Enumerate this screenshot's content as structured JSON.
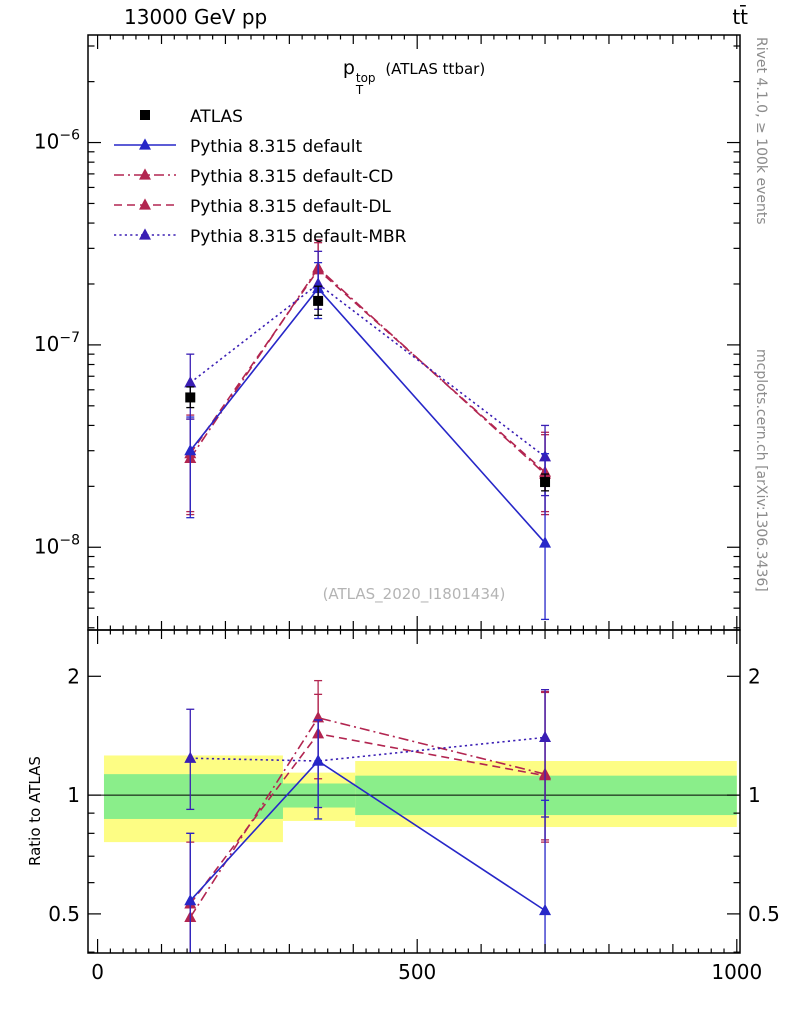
{
  "header": {
    "left": "13000 GeV pp",
    "right": "tt̄"
  },
  "title": {
    "base": "p",
    "sup": "top",
    "sub": "T",
    "suffix": " (ATLAS ttbar)"
  },
  "watermark": "(ATLAS_2020_I1801434)",
  "side_notes": {
    "top": "Rivet 4.1.0, ≥ 100k events",
    "bottom": "mcplots.cern.ch [arXiv:1306.3436]"
  },
  "ratio": {
    "ylabel": "Ratio to ATLAS"
  },
  "legend": {
    "items": [
      {
        "label": "ATLAS",
        "marker": "square",
        "color": "#000000",
        "line": "none"
      },
      {
        "label": "Pythia 8.315 default",
        "marker": "triangle",
        "color": "#2727c8",
        "line": "solid"
      },
      {
        "label": "Pythia 8.315 default-CD",
        "marker": "triangle",
        "color": "#b22550",
        "line": "dashdot"
      },
      {
        "label": "Pythia 8.315 default-DL",
        "marker": "triangle",
        "color": "#b22550",
        "line": "dashed"
      },
      {
        "label": "Pythia 8.315 default-MBR",
        "marker": "triangle",
        "color": "#3a1eb4",
        "line": "dotted"
      }
    ]
  },
  "chart_data": {
    "type": "line",
    "title": "pT^top (ATLAS ttbar)",
    "xlabel": "",
    "x_axis": {
      "min": 0,
      "max": 1000,
      "minor_step": 20,
      "major": [
        0,
        500,
        1000
      ]
    },
    "main_panel": {
      "yscale": "log",
      "ytick_exponents": [
        -6,
        -7,
        -8
      ],
      "series": [
        {
          "name": "Pythia 8.315 default-CD",
          "marker": "triangle",
          "color": "#b22550",
          "line": "dashdot",
          "points": [
            {
              "x": 145,
              "y": 2.75e-08,
              "ylo": 1.45e-08,
              "yhi": 4.3e-08
            },
            {
              "x": 345,
              "y": 2.4e-07,
              "ylo": 1.67e-07,
              "yhi": 3.3e-07
            },
            {
              "x": 700,
              "y": 2.3e-08,
              "ylo": 1.45e-08,
              "yhi": 3.6e-08
            }
          ]
        },
        {
          "name": "Pythia 8.315 default-DL",
          "marker": "triangle",
          "color": "#b22550",
          "line": "dashed",
          "points": [
            {
              "x": 145,
              "y": 2.9e-08,
              "ylo": 1.5e-08,
              "yhi": 4.5e-08
            },
            {
              "x": 345,
              "y": 2.35e-07,
              "ylo": 1.65e-07,
              "yhi": 3.2e-07
            },
            {
              "x": 700,
              "y": 2.35e-08,
              "ylo": 1.5e-08,
              "yhi": 3.7e-08
            }
          ]
        },
        {
          "name": "Pythia 8.315 default-MBR",
          "marker": "triangle",
          "color": "#3a1eb4",
          "line": "dotted",
          "points": [
            {
              "x": 145,
              "y": 6.5e-08,
              "ylo": 4.3e-08,
              "yhi": 9e-08
            },
            {
              "x": 345,
              "y": 2e-07,
              "ylo": 1.5e-07,
              "yhi": 2.9e-07
            },
            {
              "x": 700,
              "y": 2.8e-08,
              "ylo": 1.8e-08,
              "yhi": 4e-08
            }
          ]
        },
        {
          "name": "Pythia 8.315 default",
          "marker": "triangle",
          "color": "#2727c8",
          "line": "solid",
          "points": [
            {
              "x": 145,
              "y": 3e-08,
              "ylo": 1.4e-08,
              "yhi": 4.4e-08
            },
            {
              "x": 345,
              "y": 1.9e-07,
              "ylo": 1.35e-07,
              "yhi": 2.55e-07
            },
            {
              "x": 700,
              "y": 1.05e-08,
              "ylo": 4.4e-09,
              "yhi": 2.9e-08
            }
          ]
        },
        {
          "name": "ATLAS",
          "marker": "square",
          "color": "#000000",
          "line": "none",
          "points": [
            {
              "x": 145,
              "y": 5.5e-08,
              "ylo": 4.9e-08,
              "yhi": 6.2e-08
            },
            {
              "x": 345,
              "y": 1.65e-07,
              "ylo": 1.4e-07,
              "yhi": 1.95e-07
            },
            {
              "x": 700,
              "y": 2.1e-08,
              "ylo": 1.9e-08,
              "yhi": 2.3e-08
            }
          ]
        }
      ]
    },
    "ratio_panel": {
      "yscale": "log",
      "ylabel": "Ratio to ATLAS",
      "yticks": [
        0.5,
        1,
        2
      ],
      "yticks_minor": [
        0.4,
        0.6,
        0.7,
        0.8,
        0.9
      ],
      "ref_line": 1,
      "bands": [
        {
          "x0": 10,
          "x1": 290,
          "yellow": [
            0.76,
            1.26
          ],
          "green": [
            0.87,
            1.13
          ]
        },
        {
          "x0": 290,
          "x1": 403,
          "yellow": [
            0.86,
            1.14
          ],
          "green": [
            0.93,
            1.07
          ]
        },
        {
          "x0": 403,
          "x1": 1000,
          "yellow": [
            0.83,
            1.22
          ],
          "green": [
            0.89,
            1.12
          ]
        }
      ],
      "series": [
        {
          "name": "Pythia 8.315 default-CD",
          "marker": "triangle",
          "color": "#b22550",
          "line": "dashdot",
          "points": [
            {
              "x": 145,
              "y": 0.49,
              "ylo": 0.31,
              "yhi": 0.76
            },
            {
              "x": 345,
              "y": 1.57,
              "ylo": 1.2,
              "yhi": 1.95
            },
            {
              "x": 700,
              "y": 1.13,
              "ylo": 0.76,
              "yhi": 1.83
            }
          ]
        },
        {
          "name": "Pythia 8.315 default-DL",
          "marker": "triangle",
          "color": "#b22550",
          "line": "dashed",
          "points": [
            {
              "x": 145,
              "y": 0.53,
              "ylo": 0.33,
              "yhi": 0.8
            },
            {
              "x": 345,
              "y": 1.43,
              "ylo": 1.1,
              "yhi": 1.8
            },
            {
              "x": 700,
              "y": 1.12,
              "ylo": 0.77,
              "yhi": 1.82
            }
          ]
        },
        {
          "name": "Pythia 8.315 default-MBR",
          "marker": "triangle",
          "color": "#3a1eb4",
          "line": "dotted",
          "points": [
            {
              "x": 145,
              "y": 1.24,
              "ylo": 0.92,
              "yhi": 1.65
            },
            {
              "x": 345,
              "y": 1.22,
              "ylo": 0.93,
              "yhi": 1.55
            },
            {
              "x": 700,
              "y": 1.4,
              "ylo": 0.88,
              "yhi": 1.85
            }
          ]
        },
        {
          "name": "Pythia 8.315 default",
          "marker": "triangle",
          "color": "#2727c8",
          "line": "solid",
          "points": [
            {
              "x": 145,
              "y": 0.54,
              "ylo": 0.36,
              "yhi": 0.8
            },
            {
              "x": 345,
              "y": 1.22,
              "ylo": 0.87,
              "yhi": 1.55
            },
            {
              "x": 700,
              "y": 0.51,
              "ylo": 0.36,
              "yhi": 0.97
            }
          ]
        }
      ]
    },
    "layout": {
      "x_domain": [
        -15,
        1005
      ],
      "main_y_domain": [
        3.9e-09,
        3.4e-06
      ],
      "ratio_y_domain": [
        0.398,
        2.62
      ],
      "band_colors": {
        "yellow": "#fdfd84",
        "green": "#8aee8a"
      },
      "legend_position": "top-left",
      "grid": false
    }
  }
}
